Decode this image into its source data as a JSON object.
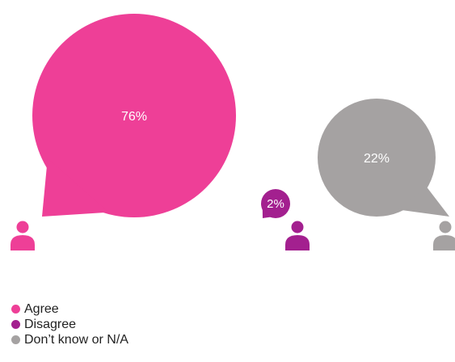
{
  "chart_data": {
    "type": "bubble",
    "title": "",
    "series": [
      {
        "name": "Agree",
        "value": 76,
        "label": "76%",
        "color": "#ee3f97"
      },
      {
        "name": "Disagree",
        "value": 2,
        "label": "2%",
        "color": "#a3208f"
      },
      {
        "name": "Don’t know or N/A",
        "value": 22,
        "label": "22%",
        "color": "#a5a2a2"
      }
    ],
    "legend_position": "bottom-left"
  },
  "legend": [
    {
      "label": "Agree",
      "color": "#ee3f97"
    },
    {
      "label": "Disagree",
      "color": "#a3208f"
    },
    {
      "label": "Don’t know or N/A",
      "color": "#a5a2a2"
    }
  ]
}
